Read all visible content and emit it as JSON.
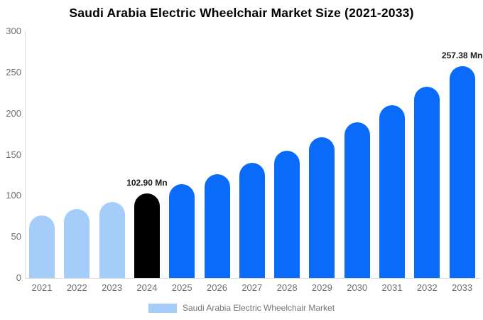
{
  "title": "Saudi Arabia Electric Wheelchair Market Size (2021-2033)",
  "legend": {
    "label": "Saudi Arabia Electric Wheelchair Market",
    "swatch_color": "#A5CDFA"
  },
  "colors": {
    "light_blue": "#A5CDFA",
    "blue": "#0A6BFA",
    "black": "#000000",
    "axis_line": "#DDDDDD",
    "tick_text": "#6E6E6E",
    "legend_text": "#757575",
    "annotation_text": "#1B1B1B",
    "title_text": "#000000",
    "background": "#FFFFFF"
  },
  "chart_data": {
    "type": "bar",
    "title": "Saudi Arabia Electric Wheelchair Market Size (2021-2033)",
    "categories": [
      "2021",
      "2022",
      "2023",
      "2024",
      "2025",
      "2026",
      "2027",
      "2028",
      "2029",
      "2030",
      "2031",
      "2032",
      "2033"
    ],
    "values": [
      75.8,
      83.9,
      92.9,
      102.9,
      113.9,
      126.2,
      139.7,
      154.7,
      171.3,
      189.6,
      209.9,
      232.5,
      257.38
    ],
    "unit": "Mn",
    "bar_colors": [
      "#A5CDFA",
      "#A5CDFA",
      "#A5CDFA",
      "#000000",
      "#0A6BFA",
      "#0A6BFA",
      "#0A6BFA",
      "#0A6BFA",
      "#0A6BFA",
      "#0A6BFA",
      "#0A6BFA",
      "#0A6BFA",
      "#0A6BFA"
    ],
    "annotations": [
      {
        "category": "2024",
        "text": "102.90 Mn"
      },
      {
        "category": "2033",
        "text": "257.38 Mn"
      }
    ],
    "xlabel": "",
    "ylabel": "",
    "ylim": [
      0,
      300
    ],
    "yticks": [
      0,
      50,
      100,
      150,
      200,
      250,
      300
    ],
    "grid": false,
    "legend_entries": [
      "Saudi Arabia Electric Wheelchair Market"
    ],
    "legend_position": "bottom"
  }
}
